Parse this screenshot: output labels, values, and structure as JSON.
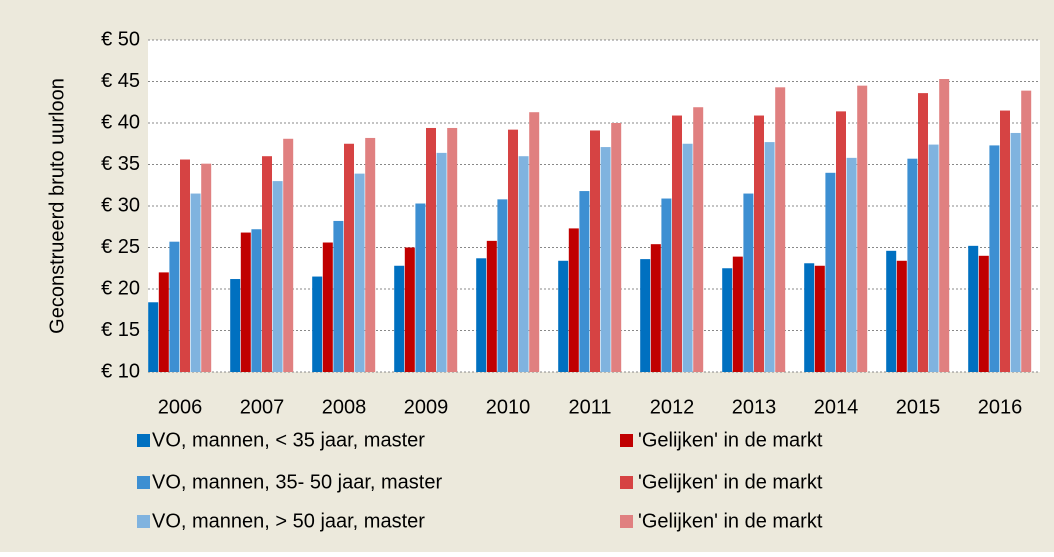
{
  "chart_data": {
    "type": "bar",
    "y_label": "Geconstrueerd bruto uurloon",
    "categories": [
      "2006",
      "2007",
      "2008",
      "2009",
      "2010",
      "2011",
      "2012",
      "2013",
      "2014",
      "2015",
      "2016"
    ],
    "series": [
      {
        "name": "VO, mannen, < 35 jaar, master",
        "color": "#0070c0",
        "values": [
          18.4,
          21.2,
          21.5,
          22.8,
          23.7,
          23.4,
          23.6,
          22.5,
          23.1,
          24.6,
          25.2
        ]
      },
      {
        "name": "'Gelijken' in de markt",
        "color": "#c00000",
        "values": [
          22,
          26.8,
          25.6,
          25,
          25.8,
          27.3,
          25.4,
          23.9,
          22.8,
          23.4,
          24
        ]
      },
      {
        "name": "VO, mannen, 35- 50 jaar, master",
        "color": "#3d8fd2",
        "values": [
          25.7,
          27.2,
          28.2,
          30.3,
          30.8,
          31.8,
          30.9,
          31.5,
          34,
          35.7,
          37.3
        ]
      },
      {
        "name": "'Gelijken' in de markt",
        "color": "#d64343",
        "values": [
          35.6,
          36,
          37.5,
          39.4,
          39.2,
          39.1,
          40.9,
          40.9,
          41.4,
          43.6,
          41.5
        ]
      },
      {
        "name": "VO, mannen, > 50 jaar, master",
        "color": "#80b3df",
        "values": [
          31.5,
          33,
          33.9,
          36.4,
          36,
          37.1,
          37.5,
          37.7,
          35.8,
          37.4,
          38.8
        ]
      },
      {
        "name": "'Gelijken' in de markt",
        "color": "#e08080",
        "values": [
          35.1,
          38.1,
          38.2,
          39.4,
          41.3,
          40,
          41.9,
          44.3,
          44.5,
          45.3,
          43.9
        ]
      }
    ],
    "ylim": [
      10,
      50
    ],
    "yticks": [
      {
        "value": 10,
        "label": "€ 10"
      },
      {
        "value": 15,
        "label": "€ 15"
      },
      {
        "value": 20,
        "label": "€ 20"
      },
      {
        "value": 25,
        "label": "€ 25"
      },
      {
        "value": 30,
        "label": "€ 30"
      },
      {
        "value": 35,
        "label": "€ 35"
      },
      {
        "value": 40,
        "label": "€ 40"
      },
      {
        "value": 45,
        "label": "€ 45"
      },
      {
        "value": 50,
        "label": "€ 50"
      }
    ],
    "grid": true
  }
}
